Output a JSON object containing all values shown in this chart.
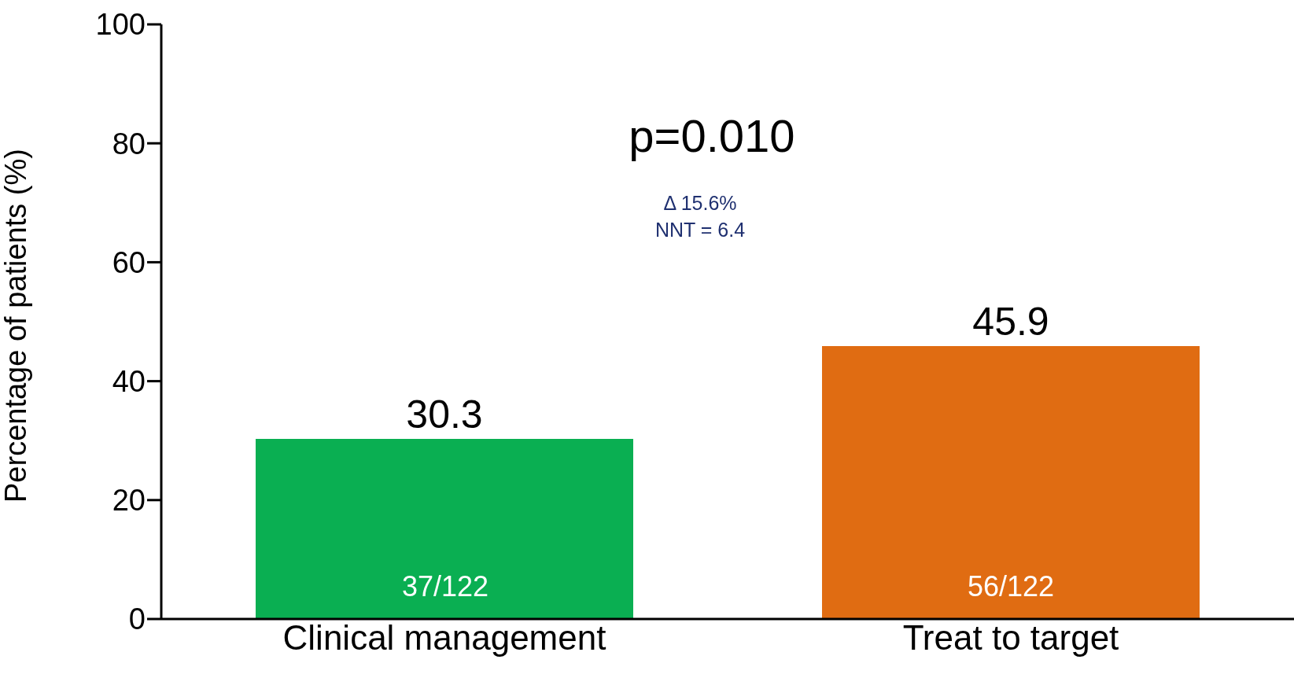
{
  "chart_data": {
    "type": "bar",
    "ylabel": "Percentage of patients (%)",
    "categories": [
      "Clinical management",
      "Treat to target"
    ],
    "values": [
      30.3,
      45.9
    ],
    "colors": [
      "#0aaf52",
      "#e06c12"
    ],
    "ylim": [
      0,
      100
    ],
    "yticks": [
      0,
      20,
      40,
      60,
      80,
      100
    ],
    "grid": false,
    "data_labels": true,
    "annotations": [
      "p=0.010",
      "Δ 15.6%",
      "NNT = 6.4",
      "37/122",
      "56/122"
    ]
  }
}
